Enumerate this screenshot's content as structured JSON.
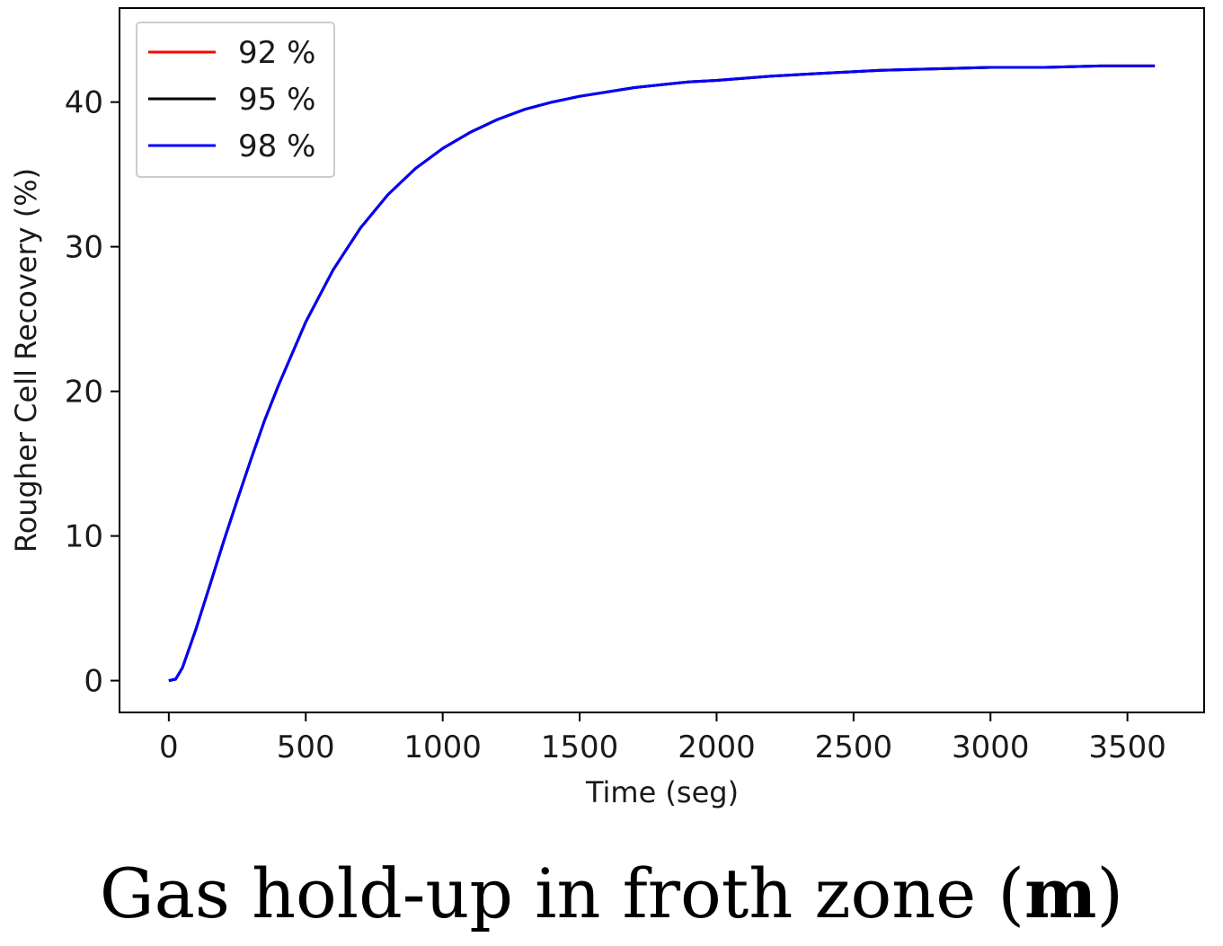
{
  "caption": {
    "text": "Gas hold-up in froth zone (",
    "bold": "m",
    "close": ")"
  },
  "chart_data": {
    "type": "line",
    "title": "",
    "xlabel": "Time (seg)",
    "ylabel": "Rougher Cell Recovery (%)",
    "xlim": [
      -180,
      3780
    ],
    "ylim": [
      -2.2,
      46.5
    ],
    "xticks": [
      0,
      500,
      1000,
      1500,
      2000,
      2500,
      3000,
      3500
    ],
    "yticks": [
      0,
      10,
      20,
      30,
      40
    ],
    "grid": false,
    "legend": "top-left",
    "x": [
      0,
      25,
      50,
      100,
      150,
      200,
      250,
      300,
      350,
      400,
      500,
      600,
      700,
      800,
      900,
      1000,
      1100,
      1200,
      1300,
      1400,
      1500,
      1600,
      1700,
      1800,
      1900,
      2000,
      2200,
      2400,
      2600,
      2800,
      3000,
      3200,
      3400,
      3600
    ],
    "series": [
      {
        "name": "92 %",
        "color": "#ff0000",
        "values": [
          0,
          0.1,
          0.9,
          3.6,
          6.6,
          9.6,
          12.5,
          15.3,
          18.0,
          20.4,
          24.8,
          28.4,
          31.3,
          33.6,
          35.4,
          36.8,
          37.9,
          38.8,
          39.5,
          40.0,
          40.4,
          40.7,
          41.0,
          41.2,
          41.4,
          41.5,
          41.8,
          42.0,
          42.2,
          42.3,
          42.4,
          42.4,
          42.5,
          42.5
        ]
      },
      {
        "name": "95 %",
        "color": "#000000",
        "values": [
          0,
          0.1,
          0.9,
          3.6,
          6.6,
          9.6,
          12.5,
          15.3,
          18.0,
          20.4,
          24.8,
          28.4,
          31.3,
          33.6,
          35.4,
          36.8,
          37.9,
          38.8,
          39.5,
          40.0,
          40.4,
          40.7,
          41.0,
          41.2,
          41.4,
          41.5,
          41.8,
          42.0,
          42.2,
          42.3,
          42.4,
          42.4,
          42.5,
          42.5
        ]
      },
      {
        "name": "98 %",
        "color": "#0000ff",
        "values": [
          0,
          0.1,
          0.9,
          3.6,
          6.6,
          9.6,
          12.5,
          15.3,
          18.0,
          20.4,
          24.8,
          28.4,
          31.3,
          33.6,
          35.4,
          36.8,
          37.9,
          38.8,
          39.5,
          40.0,
          40.4,
          40.7,
          41.0,
          41.2,
          41.4,
          41.5,
          41.8,
          42.0,
          42.2,
          42.3,
          42.4,
          42.4,
          42.5,
          42.5
        ]
      }
    ]
  }
}
